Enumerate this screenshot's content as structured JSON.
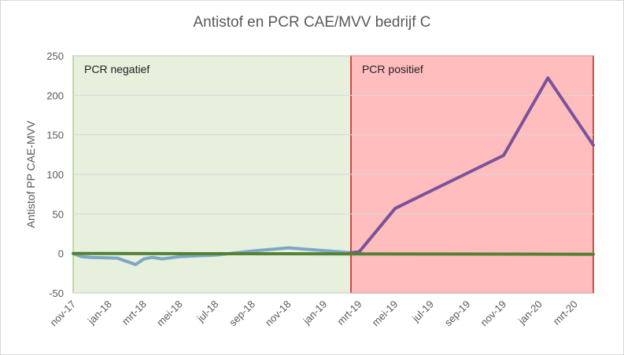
{
  "chart_data": {
    "type": "line",
    "title": "Antistof  en PCR CAE/MVV bedrijf C",
    "xlabel": "",
    "ylabel": "Antistof PP CAE-MVV",
    "ylim": [
      -50,
      250
    ],
    "yticks": [
      250,
      200,
      150,
      100,
      50,
      0,
      -50
    ],
    "x_start": "2017-11-01",
    "x_end": "2020-04-01",
    "xticks": [
      {
        "date": "2017-11-01",
        "label": "nov-17"
      },
      {
        "date": "2018-01-01",
        "label": "jan-18"
      },
      {
        "date": "2018-03-01",
        "label": "mrt-18"
      },
      {
        "date": "2018-05-01",
        "label": "mei-18"
      },
      {
        "date": "2018-07-01",
        "label": "jul-18"
      },
      {
        "date": "2018-09-01",
        "label": "sep-18"
      },
      {
        "date": "2018-11-01",
        "label": "nov-18"
      },
      {
        "date": "2019-01-01",
        "label": "jan-19"
      },
      {
        "date": "2019-03-01",
        "label": "mrt-19"
      },
      {
        "date": "2019-05-01",
        "label": "mei-19"
      },
      {
        "date": "2019-07-01",
        "label": "jul-19"
      },
      {
        "date": "2019-09-01",
        "label": "sep-19"
      },
      {
        "date": "2019-11-01",
        "label": "nov-19"
      },
      {
        "date": "2020-01-01",
        "label": "jan-20"
      },
      {
        "date": "2020-03-01",
        "label": "mrt-20"
      }
    ],
    "regions": [
      {
        "label": "PCR negatief",
        "from": "2017-11-01",
        "to": "2019-02-15",
        "fill": "#e6f0dc",
        "stroke": "#9ccc7c"
      },
      {
        "label": "PCR positief",
        "from": "2019-02-15",
        "to": "2020-04-01",
        "fill": "#ffbdbd",
        "stroke": "#c00000"
      }
    ],
    "series": [
      {
        "color": "#7ea6c8",
        "points": [
          {
            "x": "2017-11-01",
            "y": 0
          },
          {
            "x": "2017-11-15",
            "y": -4
          },
          {
            "x": "2017-12-01",
            "y": -5
          },
          {
            "x": "2018-01-15",
            "y": -6
          },
          {
            "x": "2018-02-15",
            "y": -14
          },
          {
            "x": "2018-03-01",
            "y": -7
          },
          {
            "x": "2018-03-15",
            "y": -5
          },
          {
            "x": "2018-04-01",
            "y": -7
          },
          {
            "x": "2018-05-01",
            "y": -4
          },
          {
            "x": "2018-07-01",
            "y": -2
          },
          {
            "x": "2018-09-01",
            "y": 3
          },
          {
            "x": "2018-11-01",
            "y": 7
          },
          {
            "x": "2019-02-15",
            "y": 1
          }
        ]
      },
      {
        "color": "#7a539c",
        "points": [
          {
            "x": "2019-02-15",
            "y": 1
          },
          {
            "x": "2019-03-01",
            "y": 2
          },
          {
            "x": "2019-05-01",
            "y": 57
          },
          {
            "x": "2019-11-01",
            "y": 124
          },
          {
            "x": "2020-01-15",
            "y": 222
          },
          {
            "x": "2020-04-01",
            "y": 137
          }
        ]
      },
      {
        "color": "#548235",
        "points": [
          {
            "x": "2017-11-01",
            "y": 0
          },
          {
            "x": "2020-04-01",
            "y": -1
          }
        ]
      }
    ]
  }
}
